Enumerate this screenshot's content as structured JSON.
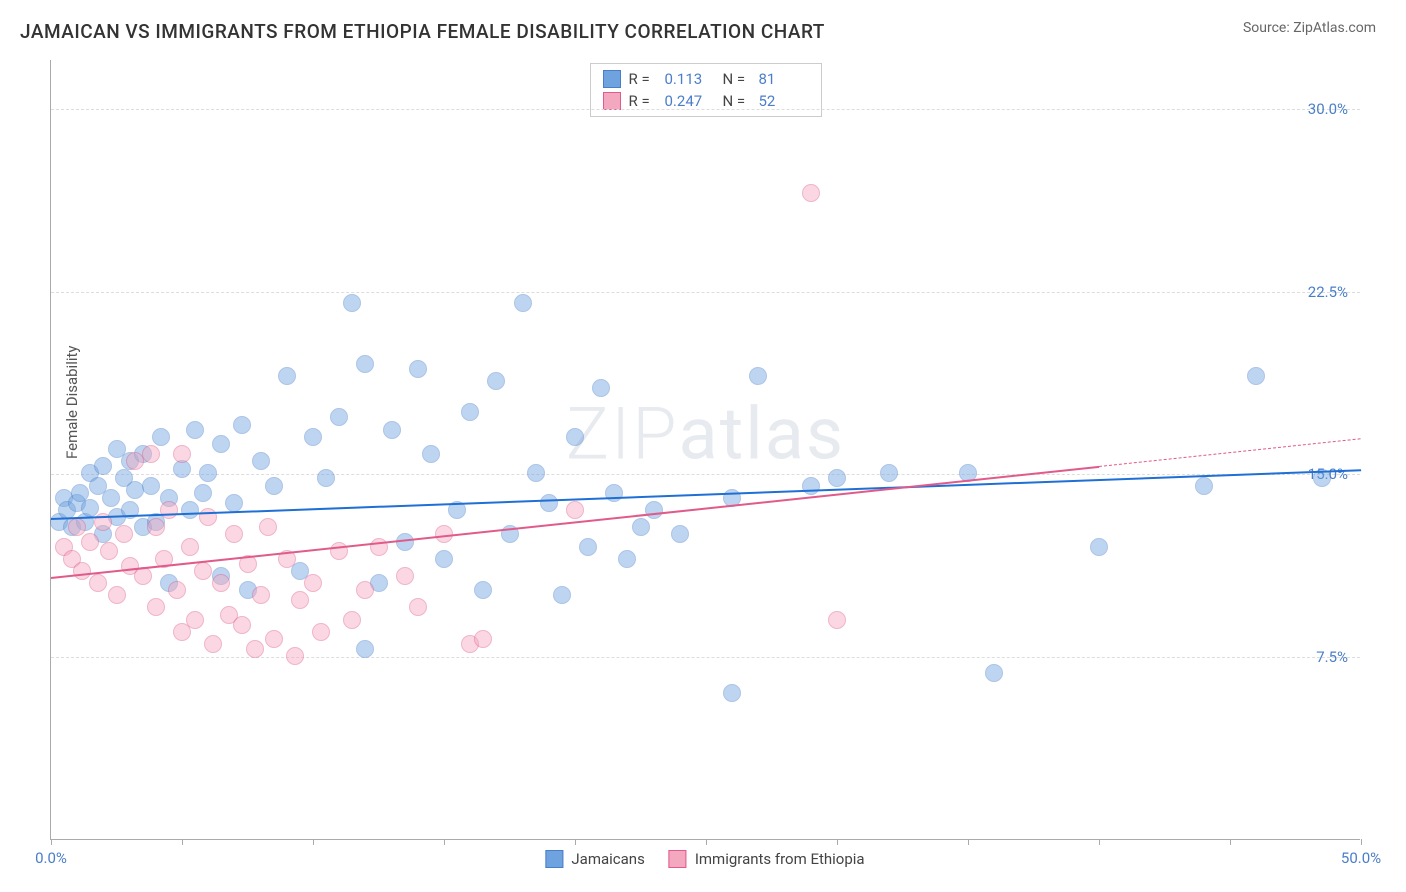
{
  "title": "JAMAICAN VS IMMIGRANTS FROM ETHIOPIA FEMALE DISABILITY CORRELATION CHART",
  "source": "Source: ZipAtlas.com",
  "ylabel": "Female Disability",
  "watermark": "ZIPatlas",
  "chart": {
    "type": "scatter",
    "xlim": [
      0,
      50
    ],
    "ylim": [
      0,
      32
    ],
    "yticks": [
      {
        "v": 7.5,
        "label": "7.5%"
      },
      {
        "v": 15.0,
        "label": "15.0%"
      },
      {
        "v": 22.5,
        "label": "22.5%"
      },
      {
        "v": 30.0,
        "label": "30.0%"
      }
    ],
    "xtick_positions": [
      0,
      5,
      10,
      15,
      20,
      25,
      30,
      35,
      40,
      45,
      50
    ],
    "xlabels": [
      {
        "v": 0,
        "label": "0.0%"
      },
      {
        "v": 50,
        "label": "50.0%"
      }
    ],
    "background_color": "#ffffff",
    "grid_color": "#dddddd",
    "marker_radius": 9,
    "marker_opacity": 0.45,
    "series": [
      {
        "name": "Jamaicans",
        "color": "#6ea3e0",
        "border": "#4a7ec9",
        "R": "0.113",
        "N": "81",
        "trend": {
          "x1": 0,
          "y1": 13.2,
          "x2": 50,
          "y2": 15.2,
          "solid_to_x": 50,
          "color": "#1f6fd4"
        },
        "points": [
          [
            0.3,
            13.0
          ],
          [
            0.5,
            14.0
          ],
          [
            0.6,
            13.5
          ],
          [
            0.8,
            12.8
          ],
          [
            1.0,
            13.8
          ],
          [
            1.1,
            14.2
          ],
          [
            1.3,
            13.0
          ],
          [
            1.5,
            13.6
          ],
          [
            1.5,
            15.0
          ],
          [
            1.8,
            14.5
          ],
          [
            2.0,
            12.5
          ],
          [
            2.0,
            15.3
          ],
          [
            2.3,
            14.0
          ],
          [
            2.5,
            13.2
          ],
          [
            2.5,
            16.0
          ],
          [
            2.8,
            14.8
          ],
          [
            3.0,
            13.5
          ],
          [
            3.0,
            15.5
          ],
          [
            3.2,
            14.3
          ],
          [
            3.5,
            12.8
          ],
          [
            3.5,
            15.8
          ],
          [
            3.8,
            14.5
          ],
          [
            4.0,
            13.0
          ],
          [
            4.2,
            16.5
          ],
          [
            4.5,
            14.0
          ],
          [
            4.5,
            10.5
          ],
          [
            5.0,
            15.2
          ],
          [
            5.3,
            13.5
          ],
          [
            5.5,
            16.8
          ],
          [
            5.8,
            14.2
          ],
          [
            6.0,
            15.0
          ],
          [
            6.5,
            10.8
          ],
          [
            6.5,
            16.2
          ],
          [
            7.0,
            13.8
          ],
          [
            7.3,
            17.0
          ],
          [
            7.5,
            10.2
          ],
          [
            8.0,
            15.5
          ],
          [
            8.5,
            14.5
          ],
          [
            9.0,
            19.0
          ],
          [
            9.5,
            11.0
          ],
          [
            10.0,
            16.5
          ],
          [
            10.5,
            14.8
          ],
          [
            11.0,
            17.3
          ],
          [
            11.5,
            22.0
          ],
          [
            12.0,
            19.5
          ],
          [
            12.0,
            7.8
          ],
          [
            12.5,
            10.5
          ],
          [
            13.0,
            16.8
          ],
          [
            13.5,
            12.2
          ],
          [
            14.0,
            19.3
          ],
          [
            15.0,
            11.5
          ],
          [
            15.5,
            13.5
          ],
          [
            16.0,
            17.5
          ],
          [
            16.5,
            10.2
          ],
          [
            17.0,
            18.8
          ],
          [
            17.5,
            12.5
          ],
          [
            18.0,
            22.0
          ],
          [
            18.5,
            15.0
          ],
          [
            19.0,
            13.8
          ],
          [
            19.5,
            10.0
          ],
          [
            20.0,
            16.5
          ],
          [
            20.5,
            12.0
          ],
          [
            21.0,
            18.5
          ],
          [
            21.5,
            14.2
          ],
          [
            22.0,
            11.5
          ],
          [
            22.5,
            12.8
          ],
          [
            23.0,
            13.5
          ],
          [
            24.0,
            12.5
          ],
          [
            26.0,
            14.0
          ],
          [
            26.0,
            6.0
          ],
          [
            27.0,
            19.0
          ],
          [
            29.0,
            14.5
          ],
          [
            30.0,
            14.8
          ],
          [
            32.0,
            15.0
          ],
          [
            35.0,
            15.0
          ],
          [
            36.0,
            6.8
          ],
          [
            40.0,
            12.0
          ],
          [
            44.0,
            14.5
          ],
          [
            46.0,
            19.0
          ],
          [
            48.5,
            14.8
          ],
          [
            14.5,
            15.8
          ]
        ]
      },
      {
        "name": "Immigrants from Ethiopia",
        "color": "#f4a8bf",
        "border": "#e05a8a",
        "R": "0.247",
        "N": "52",
        "trend": {
          "x1": 0,
          "y1": 10.8,
          "x2": 50,
          "y2": 16.5,
          "solid_to_x": 40,
          "color": "#e05a8a"
        },
        "points": [
          [
            0.5,
            12.0
          ],
          [
            0.8,
            11.5
          ],
          [
            1.0,
            12.8
          ],
          [
            1.2,
            11.0
          ],
          [
            1.5,
            12.2
          ],
          [
            1.8,
            10.5
          ],
          [
            2.0,
            13.0
          ],
          [
            2.2,
            11.8
          ],
          [
            2.5,
            10.0
          ],
          [
            2.8,
            12.5
          ],
          [
            3.0,
            11.2
          ],
          [
            3.2,
            15.5
          ],
          [
            3.5,
            10.8
          ],
          [
            3.8,
            15.8
          ],
          [
            4.0,
            9.5
          ],
          [
            4.3,
            11.5
          ],
          [
            4.5,
            13.5
          ],
          [
            4.8,
            10.2
          ],
          [
            5.0,
            8.5
          ],
          [
            5.3,
            12.0
          ],
          [
            5.5,
            9.0
          ],
          [
            5.8,
            11.0
          ],
          [
            6.0,
            13.2
          ],
          [
            6.2,
            8.0
          ],
          [
            6.5,
            10.5
          ],
          [
            6.8,
            9.2
          ],
          [
            7.0,
            12.5
          ],
          [
            7.3,
            8.8
          ],
          [
            7.5,
            11.3
          ],
          [
            7.8,
            7.8
          ],
          [
            8.0,
            10.0
          ],
          [
            8.3,
            12.8
          ],
          [
            8.5,
            8.2
          ],
          [
            9.0,
            11.5
          ],
          [
            9.3,
            7.5
          ],
          [
            9.5,
            9.8
          ],
          [
            10.0,
            10.5
          ],
          [
            10.3,
            8.5
          ],
          [
            11.0,
            11.8
          ],
          [
            11.5,
            9.0
          ],
          [
            12.0,
            10.2
          ],
          [
            12.5,
            12.0
          ],
          [
            13.5,
            10.8
          ],
          [
            14.0,
            9.5
          ],
          [
            15.0,
            12.5
          ],
          [
            16.0,
            8.0
          ],
          [
            16.5,
            8.2
          ],
          [
            20.0,
            13.5
          ],
          [
            30.0,
            9.0
          ],
          [
            29.0,
            26.5
          ],
          [
            5.0,
            15.8
          ],
          [
            4.0,
            12.8
          ]
        ]
      }
    ]
  }
}
